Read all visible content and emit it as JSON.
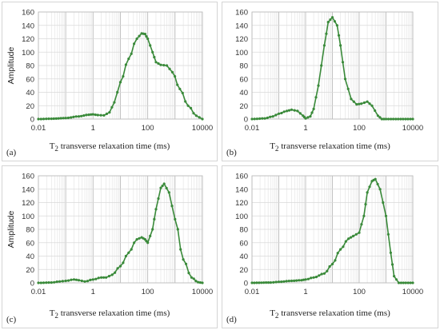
{
  "chart_data": [
    {
      "type": "line",
      "panel_label": "(a)",
      "xlabel_prefix": "T",
      "xlabel_sub": "2",
      "xlabel_rest": " transverse relaxation time (ms)",
      "ylabel": "Amplitude",
      "xscale": "log",
      "xlim": [
        0.01,
        10000
      ],
      "ylim": [
        0,
        160
      ],
      "x_ticks": [
        "0.01",
        "1",
        "100",
        "10000"
      ],
      "y_ticks": [
        "0",
        "20",
        "40",
        "60",
        "80",
        "100",
        "120",
        "140",
        "160"
      ],
      "series_color": "#3a8a3a",
      "grid": true,
      "series": [
        {
          "x": [
            0.01,
            0.03,
            0.1,
            0.3,
            0.7,
            1.0,
            1.5,
            2.5,
            4,
            6,
            10,
            20,
            40,
            60,
            80,
            100,
            150,
            200,
            300,
            500,
            800,
            1500,
            3000,
            6000,
            10000
          ],
          "y": [
            0,
            0.5,
            1.5,
            4,
            6.5,
            7,
            6,
            5.5,
            10,
            25,
            55,
            90,
            120,
            128,
            127,
            120,
            100,
            85,
            81,
            80,
            70,
            45,
            20,
            5,
            0
          ]
        }
      ]
    },
    {
      "type": "line",
      "panel_label": "(b)",
      "xlabel_prefix": "T",
      "xlabel_sub": "2",
      "xlabel_rest": " transverse relaxation time (ms)",
      "ylabel": "",
      "xscale": "log",
      "xlim": [
        0.01,
        10000
      ],
      "ylim": [
        0,
        160
      ],
      "x_ticks": [
        "0.01",
        "1",
        "100",
        "10000"
      ],
      "y_ticks": [
        "0",
        "20",
        "40",
        "60",
        "80",
        "100",
        "120",
        "140",
        "160"
      ],
      "series_color": "#3a8a3a",
      "grid": true,
      "series": [
        {
          "x": [
            0.01,
            0.03,
            0.06,
            0.1,
            0.2,
            0.3,
            0.5,
            0.8,
            1.0,
            1.5,
            2,
            3,
            5,
            7,
            10,
            15,
            20,
            30,
            50,
            80,
            120,
            200,
            300,
            500,
            700,
            1000,
            10000
          ],
          "y": [
            0,
            1,
            4,
            8,
            12,
            14,
            12,
            5,
            1,
            4,
            15,
            50,
            110,
            145,
            152,
            140,
            110,
            60,
            30,
            22,
            23,
            26,
            20,
            5,
            0,
            0,
            0
          ]
        }
      ]
    },
    {
      "type": "line",
      "panel_label": "(c)",
      "xlabel_prefix": "T",
      "xlabel_sub": "2",
      "xlabel_rest": " transverse relaxation time (ms)",
      "ylabel": "Amplitude",
      "xscale": "log",
      "xlim": [
        0.01,
        10000
      ],
      "ylim": [
        0,
        160
      ],
      "x_ticks": [
        "0.01",
        "1",
        "100",
        "10000"
      ],
      "y_ticks": [
        "0",
        "20",
        "40",
        "60",
        "80",
        "100",
        "120",
        "140",
        "160"
      ],
      "series_color": "#3a8a3a",
      "grid": true,
      "series": [
        {
          "x": [
            0.01,
            0.03,
            0.06,
            0.1,
            0.2,
            0.3,
            0.5,
            1.0,
            2,
            3,
            5,
            10,
            20,
            40,
            60,
            80,
            100,
            150,
            200,
            300,
            400,
            600,
            1000,
            2000,
            4000,
            7000,
            10000
          ],
          "y": [
            0,
            0.5,
            2,
            3,
            5,
            4,
            2,
            5,
            8,
            8,
            12,
            25,
            45,
            65,
            68,
            65,
            60,
            80,
            110,
            142,
            148,
            135,
            95,
            35,
            8,
            1,
            0
          ]
        }
      ]
    },
    {
      "type": "line",
      "panel_label": "(d)",
      "xlabel_prefix": "T",
      "xlabel_sub": "2",
      "xlabel_rest": " transverse relaxation time (ms)",
      "ylabel": "",
      "xscale": "log",
      "xlim": [
        0.01,
        10000
      ],
      "ylim": [
        0,
        160
      ],
      "x_ticks": [
        "0.01",
        "1",
        "100",
        "10000"
      ],
      "y_ticks": [
        "0",
        "20",
        "40",
        "60",
        "80",
        "100",
        "120",
        "140",
        "160"
      ],
      "series_color": "#3a8a3a",
      "grid": true,
      "series": [
        {
          "x": [
            0.01,
            0.05,
            0.1,
            0.3,
            0.7,
            1.0,
            2,
            5,
            10,
            20,
            40,
            60,
            100,
            150,
            200,
            300,
            400,
            600,
            1000,
            1500,
            2000,
            3000,
            10000
          ],
          "y": [
            0,
            0.5,
            1.5,
            3,
            4,
            5,
            8,
            14,
            28,
            50,
            66,
            70,
            75,
            100,
            135,
            152,
            155,
            140,
            100,
            45,
            10,
            0,
            0
          ]
        }
      ]
    }
  ]
}
